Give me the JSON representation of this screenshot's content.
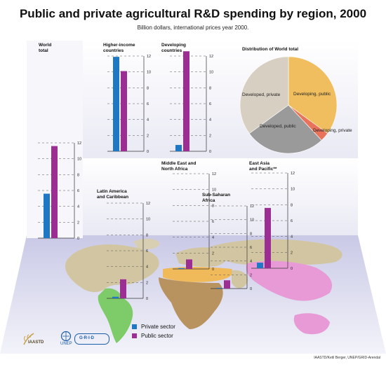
{
  "title": "Public and private agricultural R&D spending by region, 2000",
  "subtitle": "Billion dollars, international prices year 2000.",
  "legend": {
    "private_label": "Private sector",
    "public_label": "Public sector"
  },
  "colors": {
    "private": "#1f78c4",
    "public": "#9b2d93",
    "dev_public": "#f0be5e",
    "dev_private": "#e8735a",
    "developed_public": "#9a9a9a",
    "developed_private": "#d7cfc2"
  },
  "credit": "IAASTD/Ketil Berger, UNEP/GRID-Arendal",
  "logos": {
    "iaastd": "IAASTD",
    "unep": "UNEP",
    "grid": "G·R·I·D"
  },
  "chart_data": [
    {
      "type": "bar",
      "id": "world",
      "title": "World total",
      "categories": [
        "Private sector",
        "Public sector"
      ],
      "values": [
        5.6,
        11.6
      ],
      "ylim": [
        0,
        12
      ],
      "ticks": [
        0,
        2,
        4,
        6,
        8,
        10,
        12
      ]
    },
    {
      "type": "bar",
      "id": "higher",
      "title": "Higher-income countries",
      "categories": [
        "Private sector",
        "Public sector"
      ],
      "values": [
        11.9,
        10.1
      ],
      "ylim": [
        0,
        12
      ],
      "ticks": [
        0,
        2,
        4,
        6,
        8,
        10,
        12
      ]
    },
    {
      "type": "bar",
      "id": "developing",
      "title": "Developing countries",
      "categories": [
        "Private sector",
        "Public sector"
      ],
      "values": [
        0.8,
        12.6
      ],
      "ylim": [
        0,
        12
      ],
      "ticks": [
        0,
        2,
        4,
        6,
        8,
        10,
        12
      ]
    },
    {
      "type": "bar",
      "id": "latam",
      "title": "Latin America and Caribbean",
      "categories": [
        "Private sector",
        "Public sector"
      ],
      "values": [
        0.2,
        2.4
      ],
      "ylim": [
        0,
        12
      ],
      "ticks": [
        0,
        2,
        4,
        6,
        8,
        10,
        12
      ]
    },
    {
      "type": "bar",
      "id": "mena",
      "title": "Middle East and North Africa",
      "categories": [
        "Private sector",
        "Public sector"
      ],
      "values": [
        0.1,
        1.2
      ],
      "ylim": [
        0,
        12
      ],
      "ticks": [
        0,
        2,
        4,
        6,
        8,
        10,
        12
      ]
    },
    {
      "type": "bar",
      "id": "ssa",
      "title": "Sub-Saharan Africa",
      "categories": [
        "Private sector",
        "Public sector"
      ],
      "values": [
        0.1,
        1.2
      ],
      "ylim": [
        0,
        12
      ],
      "ticks": [
        0,
        2,
        4,
        6,
        8,
        10,
        12
      ]
    },
    {
      "type": "bar",
      "id": "eap",
      "title": "East Asia and Pacific**",
      "categories": [
        "Private sector",
        "Public sector"
      ],
      "values": [
        0.7,
        7.6
      ],
      "ylim": [
        0,
        12
      ],
      "ticks": [
        0,
        2,
        4,
        6,
        8,
        10,
        12
      ]
    },
    {
      "type": "pie",
      "id": "distribution",
      "title": "Distribution of World total",
      "labels": [
        "Developing, public",
        "Developing, private",
        "Developed, public",
        "Developed, private"
      ],
      "values": [
        35,
        3,
        27,
        35
      ]
    }
  ]
}
